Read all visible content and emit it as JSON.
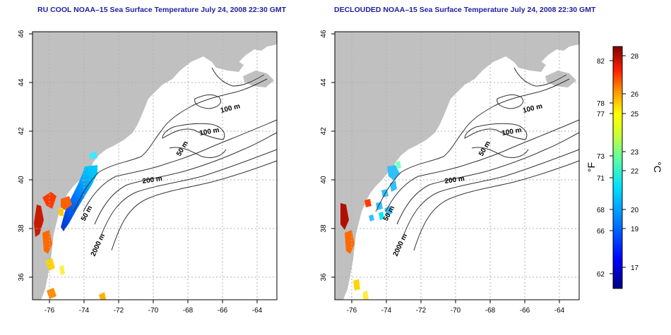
{
  "maps": [
    {
      "id": "left",
      "title": "RU COOL NOAA–15 Sea Surface Temperature July 24, 2008 22:30 GMT",
      "xticks": [
        "-76",
        "-74",
        "-72",
        "-70",
        "-68",
        "-66",
        "-64"
      ],
      "yticks": [
        "36",
        "38",
        "40",
        "42",
        "44",
        "46"
      ],
      "contour_labels": [
        "100 m",
        "100 m",
        "50 m",
        "200 m",
        "50 m",
        "2000 m"
      ]
    },
    {
      "id": "right",
      "title": "DECLOUDED NOAA–15 Sea Surface Temperature July 24, 2008 22:30 GMT",
      "xticks": [
        "-76",
        "-74",
        "-72",
        "-70",
        "-68",
        "-66",
        "-64"
      ],
      "yticks": [
        "36",
        "38",
        "40",
        "42",
        "44",
        "46"
      ],
      "contour_labels": [
        "100 m",
        "100 m",
        "50 m",
        "200 m",
        "50 m",
        "2000 m"
      ]
    }
  ],
  "colorbar": {
    "f_label": "°F",
    "c_label": "°C",
    "f_ticks": [
      "82",
      "78",
      "77",
      "73",
      "71",
      "68",
      "66",
      "62"
    ],
    "c_ticks": [
      "28",
      "26",
      "25",
      "23",
      "22",
      "20",
      "19",
      "17"
    ]
  },
  "colors": {
    "land": "#c0c0c0",
    "title": "#1f1f9f",
    "frame": "#000000",
    "grid": "#b0b0b0"
  }
}
